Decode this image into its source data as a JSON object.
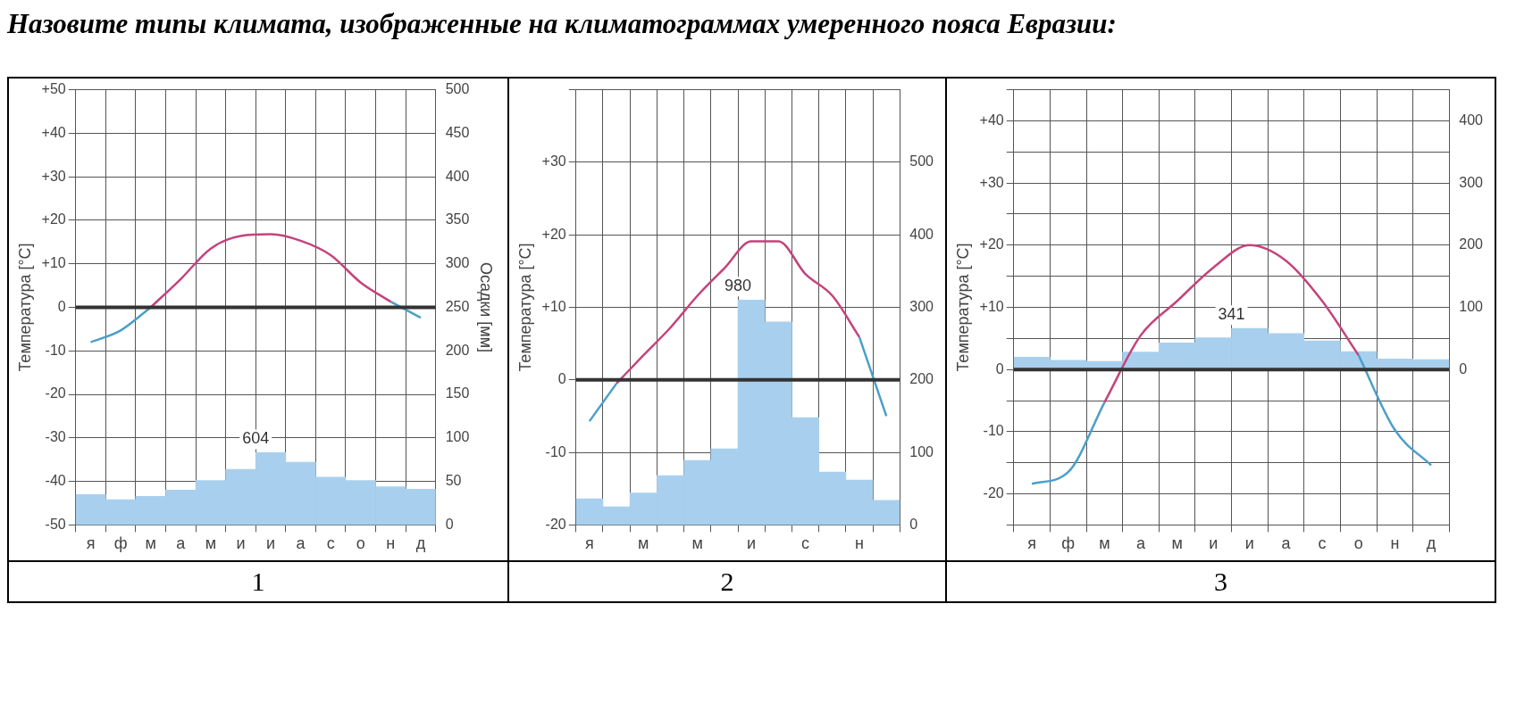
{
  "chart_data": [
    {
      "type": "bar",
      "title": "Назовите типы климата, изображенные на климатограммах умеренного пояса Евразии:",
      "subtitle": "1",
      "ylabel": "Температура [°C]",
      "y2label": "Осадки [мм]",
      "categories": [
        "я",
        "ф",
        "м",
        "а",
        "м",
        "и",
        "и",
        "а",
        "с",
        "о",
        "н",
        "д"
      ],
      "series": [
        {
          "axis": "y2",
          "color": "#a8d0ee",
          "values": [
            35,
            29,
            33,
            40,
            51,
            64,
            83,
            72,
            55,
            51,
            44,
            41
          ]
        },
        {
          "type": "line",
          "color": "#4a9fc8",
          "values": [
            -8,
            -5.3,
            0,
            null,
            null,
            null,
            null,
            null,
            null,
            null,
            1.3,
            -2.4
          ]
        },
        {
          "type": "line",
          "color": "#c4437c",
          "values": [
            null,
            null,
            0,
            6.5,
            13.5,
            16.4,
            16.8,
            15.3,
            12,
            5.7,
            1.3,
            null
          ]
        }
      ],
      "ylim": [
        -50,
        50
      ],
      "yticks": [
        -50,
        -40,
        -30,
        -20,
        -10,
        0,
        {
          "value": 10,
          "label": "+10"
        },
        {
          "value": 20,
          "label": "+20"
        },
        {
          "value": 30,
          "label": "+30"
        },
        {
          "value": 40,
          "label": "+40"
        },
        {
          "value": 50,
          "label": "+50"
        }
      ],
      "y2lim": [
        0,
        500
      ],
      "y2ticks": [
        0,
        50,
        100,
        150,
        200,
        250,
        300,
        350,
        400,
        450,
        500
      ],
      "ref_lines": [
        {
          "axis": "y",
          "value": 0,
          "color": "#333333"
        }
      ],
      "annotations": [
        "604"
      ],
      "grid": true,
      "marker": "none"
    },
    {
      "type": "bar",
      "subtitle": "2",
      "ylabel": "Температура [°C]",
      "categories": [
        "я",
        null,
        "м",
        null,
        "м",
        null,
        "и",
        null,
        "с",
        null,
        "н",
        null
      ],
      "series": [
        {
          "axis": "y2",
          "color": "#a8d0ee",
          "values": [
            36,
            25,
            44,
            68,
            89,
            105,
            310,
            280,
            148,
            73,
            62,
            34
          ]
        },
        {
          "type": "line",
          "color": "#4a9fc8",
          "values": [
            -5.7,
            -0.5,
            null,
            null,
            null,
            null,
            null,
            null,
            null,
            null,
            5.9,
            -5
          ]
        },
        {
          "type": "line",
          "color": "#c4437c",
          "values": [
            null,
            -0.5,
            3.4,
            7.2,
            11.6,
            15.4,
            19.1,
            19.1,
            14.6,
            11.6,
            5.9,
            null
          ]
        }
      ],
      "ylim": [
        -20,
        40
      ],
      "yticks": [
        -20,
        -10,
        0,
        {
          "value": 10,
          "label": "+10"
        },
        {
          "value": 20,
          "label": "+20"
        },
        {
          "value": 30,
          "label": "+30"
        },
        {
          "value": 40,
          "label": null
        }
      ],
      "y2lim": [
        0,
        600
      ],
      "y2ticks": [
        0,
        100,
        200,
        300,
        400,
        500
      ],
      "ref_lines": [
        {
          "axis": "y",
          "value": 0,
          "color": "#333333"
        }
      ],
      "annotations": [
        "980"
      ],
      "grid": true,
      "marker": "none"
    },
    {
      "type": "bar",
      "subtitle": "3",
      "ylabel": "Температура [°C]",
      "categories": [
        "я",
        "ф",
        "м",
        "а",
        "м",
        "и",
        "и",
        "а",
        "с",
        "о",
        "н",
        "д"
      ],
      "series": [
        {
          "axis": "y2",
          "color": "#a8d0ee",
          "values": [
            20,
            15,
            13,
            28,
            43,
            51,
            66,
            58,
            46,
            29,
            17,
            16
          ]
        },
        {
          "type": "line",
          "color": "#4a9fc8",
          "values": [
            -18.4,
            -16.5,
            -5.3,
            null,
            null,
            null,
            null,
            null,
            null,
            2.3,
            -9.7,
            -15.4
          ]
        },
        {
          "type": "line",
          "color": "#c4437c",
          "values": [
            null,
            null,
            -5.3,
            5.5,
            11,
            16.4,
            20,
            17.5,
            11,
            2.3,
            null,
            null
          ]
        }
      ],
      "ylim": [
        -25,
        45
      ],
      "yticks": [
        {
          "value": -25,
          "label": null
        },
        -20,
        {
          "value": -15,
          "label": null
        },
        -10,
        {
          "value": -5,
          "label": null
        },
        0,
        {
          "value": 5,
          "label": null
        },
        {
          "value": 10,
          "label": "+10"
        },
        {
          "value": 15,
          "label": null
        },
        {
          "value": 20,
          "label": "+20"
        },
        {
          "value": 25,
          "label": null
        },
        {
          "value": 30,
          "label": "+30"
        },
        {
          "value": 35,
          "label": null
        },
        {
          "value": 40,
          "label": "+40"
        },
        {
          "value": 45,
          "label": null
        }
      ],
      "y2lim": [
        -250,
        450
      ],
      "y2ticks": [
        0,
        100,
        200,
        300,
        400
      ],
      "ref_lines": [
        {
          "axis": "y",
          "value": 0,
          "color": "#333333"
        }
      ],
      "annotations": [
        "341"
      ],
      "grid": true,
      "marker": "none"
    }
  ]
}
